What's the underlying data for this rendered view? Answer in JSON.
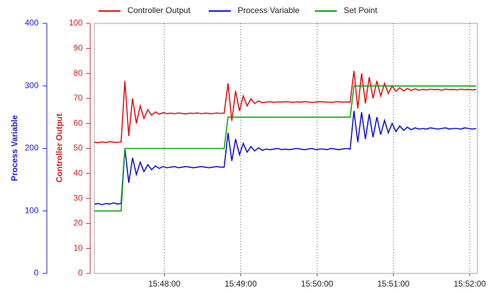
{
  "chart_data": {
    "type": "line",
    "x": [
      "15:47:05",
      "15:47:08",
      "15:47:11",
      "15:47:14",
      "15:47:17",
      "15:47:20",
      "15:47:23",
      "15:47:26",
      "15:47:29",
      "15:47:32",
      "15:47:35",
      "15:47:38",
      "15:47:41",
      "15:47:44",
      "15:47:47",
      "15:47:50",
      "15:47:53",
      "15:47:56",
      "15:47:59",
      "15:48:02",
      "15:48:05",
      "15:48:08",
      "15:48:11",
      "15:48:14",
      "15:48:17",
      "15:48:20",
      "15:48:23",
      "15:48:26",
      "15:48:29",
      "15:48:32",
      "15:48:35",
      "15:48:38",
      "15:48:41",
      "15:48:44",
      "15:48:47",
      "15:48:50",
      "15:48:53",
      "15:48:56",
      "15:48:59",
      "15:49:02",
      "15:49:05",
      "15:49:08",
      "15:49:11",
      "15:49:14",
      "15:49:17",
      "15:49:20",
      "15:49:23",
      "15:49:26",
      "15:49:29",
      "15:49:32",
      "15:49:35",
      "15:49:38",
      "15:49:41",
      "15:49:44",
      "15:49:47",
      "15:49:50",
      "15:49:53",
      "15:49:56",
      "15:49:59",
      "15:50:02",
      "15:50:05",
      "15:50:08",
      "15:50:11",
      "15:50:14",
      "15:50:17",
      "15:50:20",
      "15:50:23",
      "15:50:26",
      "15:50:29",
      "15:50:32",
      "15:50:35",
      "15:50:38",
      "15:50:41",
      "15:50:44",
      "15:50:47",
      "15:50:50",
      "15:50:53",
      "15:50:56",
      "15:50:59",
      "15:51:02",
      "15:51:05",
      "15:51:08",
      "15:51:11",
      "15:51:14",
      "15:51:17",
      "15:51:20",
      "15:51:23",
      "15:51:26",
      "15:51:29",
      "15:51:32",
      "15:51:35",
      "15:51:38",
      "15:51:41",
      "15:51:44",
      "15:51:47",
      "15:51:50",
      "15:51:53",
      "15:51:56",
      "15:51:59",
      "15:52:02",
      "15:52:05"
    ],
    "xlim": [
      "15:47:05",
      "15:52:06"
    ],
    "xticks": [
      "15:48:00",
      "15:49:00",
      "15:50:00",
      "15:51:00",
      "15:52:00"
    ],
    "ylabel": "Process Variable",
    "ylabel_color": "#1a1adc",
    "ylim": [
      0,
      400
    ],
    "yticks": [
      0,
      100,
      200,
      300,
      400
    ],
    "y2label": "Controller Output",
    "y2label_color": "#d42020",
    "y2lim": [
      0,
      100
    ],
    "y2ticks": [
      0,
      10,
      20,
      30,
      40,
      50,
      60,
      70,
      80,
      90,
      100
    ],
    "grid": true,
    "series": [
      {
        "name": "Controller Output",
        "color": "#e01010",
        "axis": "y2",
        "values": [
          52.5,
          52.3,
          52.6,
          52.4,
          52.7,
          52.5,
          52.4,
          52.6,
          77,
          55,
          70,
          60,
          67,
          62,
          65.5,
          63.3,
          64.6,
          63.7,
          64.3,
          63.9,
          64.1,
          63.9,
          64.2,
          64,
          63.8,
          64.1,
          64,
          64.2,
          63.9,
          64.1,
          64,
          63.9,
          64.2,
          64,
          64.1,
          76,
          61,
          73,
          65,
          71,
          67,
          69.8,
          68,
          69,
          68.3,
          68.5,
          68.7,
          68.4,
          68.6,
          68.5,
          68.7,
          68.6,
          68.4,
          68.6,
          68.5,
          68.7,
          68.6,
          68.4,
          68.5,
          68.7,
          68.6,
          68.5,
          68.4,
          68.6,
          68.7,
          68.5,
          68.6,
          68.5,
          81,
          66,
          80,
          68,
          78.5,
          70,
          77,
          71,
          76,
          72,
          75,
          72.8,
          74.3,
          73,
          74,
          73.2,
          73.8,
          73.3,
          73.6,
          73.4,
          73.7,
          73.5,
          73.6,
          73.3,
          73.7,
          73.5,
          73.6,
          73.4,
          73.7,
          73.5,
          73.6,
          73.4,
          73.6
        ]
      },
      {
        "name": "Process Variable",
        "color": "#1010d0",
        "values": [
          111,
          112,
          110,
          112,
          111,
          113,
          111,
          112,
          200,
          145,
          185,
          158,
          178,
          163,
          174,
          166,
          172,
          168,
          171,
          169,
          170,
          171,
          169,
          170,
          171,
          170,
          169,
          170,
          171,
          170,
          169,
          170,
          171,
          170,
          170,
          225,
          180,
          215,
          190,
          208,
          194,
          203,
          196,
          201,
          197,
          199,
          198,
          199,
          200,
          198,
          199,
          198,
          199,
          200,
          199,
          198,
          199,
          200,
          198,
          199,
          199,
          198,
          200,
          199,
          198,
          199,
          200,
          199,
          260,
          210,
          258,
          215,
          255,
          218,
          250,
          222,
          245,
          225,
          240,
          227,
          236,
          229,
          234,
          230,
          233,
          231,
          232,
          231,
          233,
          232,
          231,
          232,
          233,
          231,
          232,
          232,
          231,
          233,
          232,
          231,
          232
        ]
      },
      {
        "name": "Set Point",
        "color": "#10a010",
        "values": [
          100,
          100,
          100,
          100,
          100,
          100,
          100,
          100,
          200,
          200,
          200,
          200,
          200,
          200,
          200,
          200,
          200,
          200,
          200,
          200,
          200,
          200,
          200,
          200,
          200,
          200,
          200,
          200,
          200,
          200,
          200,
          200,
          200,
          200,
          200,
          250,
          250,
          250,
          250,
          250,
          250,
          250,
          250,
          250,
          250,
          250,
          250,
          250,
          250,
          250,
          250,
          250,
          250,
          250,
          250,
          250,
          250,
          250,
          250,
          250,
          250,
          250,
          250,
          250,
          250,
          250,
          250,
          250,
          300,
          300,
          300,
          300,
          300,
          300,
          300,
          300,
          300,
          300,
          300,
          300,
          300,
          300,
          300,
          300,
          300,
          300,
          300,
          300,
          300,
          300,
          300,
          300,
          300,
          300,
          300,
          300,
          300,
          300,
          300,
          300,
          300
        ]
      }
    ]
  }
}
